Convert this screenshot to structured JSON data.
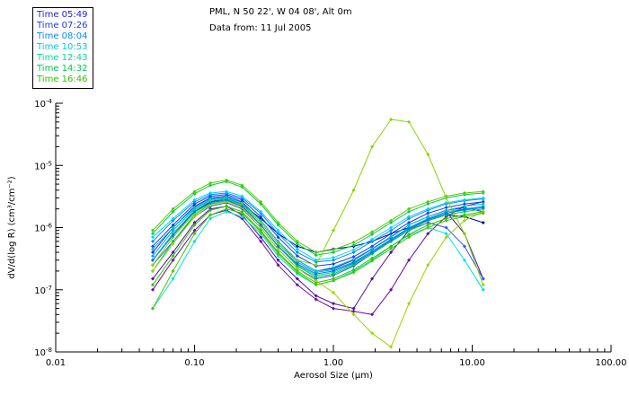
{
  "header": {
    "line1": "PML, N 50 22', W 04 08', Alt 0m",
    "line2": "Data from: 11 Jul 2005"
  },
  "legend": {
    "items": [
      {
        "label": "Time 05:49",
        "color": "#2222dd"
      },
      {
        "label": "Time 07:26",
        "color": "#1a3cf0"
      },
      {
        "label": "Time 08:04",
        "color": "#008cff"
      },
      {
        "label": "Time 10:53",
        "color": "#00c8e0"
      },
      {
        "label": "Time 12:43",
        "color": "#00dc9b"
      },
      {
        "label": "Time 14:32",
        "color": "#00c850"
      },
      {
        "label": "Time 16:46",
        "color": "#2fc400"
      }
    ]
  },
  "chart_data": {
    "type": "line",
    "title": "",
    "xlabel": "Aerosol Size (μm)",
    "ylabel": "dV/d(log R) (cm³/cm⁻²)",
    "x_scale": "log",
    "y_scale": "log",
    "xlim": [
      0.01,
      100
    ],
    "ylim": [
      1e-08,
      0.0001
    ],
    "grid": false,
    "legend_position": "top-left",
    "x_ticks": [
      {
        "value": 0.01,
        "label": "0.01"
      },
      {
        "value": 0.1,
        "label": "0.10"
      },
      {
        "value": 1,
        "label": "1.00"
      },
      {
        "value": 10,
        "label": "10.00"
      },
      {
        "value": 100,
        "label": "100.00"
      }
    ],
    "y_tick_exponents": [
      -8,
      -7,
      -6,
      -5,
      -4
    ],
    "x": [
      0.05,
      0.07,
      0.1,
      0.13,
      0.17,
      0.22,
      0.3,
      0.4,
      0.55,
      0.75,
      1.0,
      1.4,
      1.9,
      2.6,
      3.5,
      4.8,
      6.5,
      8.8,
      12.0
    ],
    "series": [
      {
        "name": "05:49 a",
        "color": "#000099",
        "values": [
          3e-07,
          8e-07,
          1.8e-06,
          2.6e-06,
          2.9e-06,
          2.4e-06,
          1.4e-06,
          8e-07,
          5e-07,
          4e-07,
          4.5e-07,
          5e-07,
          6e-07,
          8e-07,
          1e-06,
          1.3e-06,
          1.6e-06,
          1.5e-06,
          1.2e-06
        ]
      },
      {
        "name": "05:49 b",
        "color": "#4b0fa8",
        "values": [
          1.5e-07,
          4e-07,
          1.2e-06,
          2e-06,
          2.2e-06,
          1.6e-06,
          7e-07,
          3e-07,
          1.5e-07,
          8e-08,
          6e-08,
          5e-08,
          1.5e-07,
          4e-07,
          9e-07,
          1.4e-06,
          1.8e-06,
          8e-07,
          1.5e-07
        ]
      },
      {
        "name": "05:49 c",
        "color": "#6a0dad",
        "values": [
          1e-07,
          3e-07,
          9e-07,
          1.6e-06,
          1.9e-06,
          1.4e-06,
          6e-07,
          2.5e-07,
          1.2e-07,
          7e-08,
          5e-08,
          4.5e-08,
          4e-08,
          1e-07,
          3e-07,
          8e-07,
          1.5e-06,
          2.2e-06,
          2.6e-06
        ]
      },
      {
        "name": "05:49 d",
        "color": "#2222dd",
        "values": [
          4e-07,
          1e-06,
          2.2e-06,
          3e-06,
          3.2e-06,
          2.6e-06,
          1.3e-06,
          6e-07,
          3e-07,
          2e-07,
          2.2e-07,
          3e-07,
          4.5e-07,
          7e-07,
          1.1e-06,
          1.5e-06,
          1.9e-06,
          2.1e-06,
          1.8e-06
        ]
      },
      {
        "name": "07:26 a",
        "color": "#1a3cf0",
        "values": [
          5e-07,
          1.1e-06,
          2.4e-06,
          3.2e-06,
          3.4e-06,
          2.8e-06,
          1.5e-06,
          7e-07,
          3.5e-07,
          2.4e-07,
          2.6e-07,
          3.4e-07,
          5e-07,
          8e-07,
          1.2e-06,
          1.7e-06,
          2.1e-06,
          2.4e-06,
          2.6e-06
        ]
      },
      {
        "name": "07:26 b",
        "color": "#3355ff",
        "values": [
          2.5e-07,
          6e-07,
          1.5e-06,
          2.2e-06,
          2.5e-06,
          2e-06,
          1e-06,
          4.5e-07,
          2.2e-07,
          1.5e-07,
          1.7e-07,
          2.4e-07,
          3.8e-07,
          6e-07,
          9e-07,
          1.2e-06,
          1e-06,
          5e-07,
          1.5e-07
        ]
      },
      {
        "name": "08:04 a",
        "color": "#008cff",
        "values": [
          6e-07,
          1.3e-06,
          2.6e-06,
          3.4e-06,
          3.6e-06,
          3e-06,
          1.7e-06,
          8e-07,
          4e-07,
          2.8e-07,
          3e-07,
          4e-07,
          6e-07,
          9e-07,
          1.4e-06,
          1.9e-06,
          2.4e-06,
          2.7e-06,
          2.9e-06
        ]
      },
      {
        "name": "08:04 b",
        "color": "#00a0ff",
        "values": [
          3.5e-07,
          9e-07,
          2e-06,
          2.8e-06,
          3e-06,
          2.4e-06,
          1.2e-06,
          5.5e-07,
          2.8e-07,
          1.9e-07,
          2.1e-07,
          2.8e-07,
          4.2e-07,
          6.5e-07,
          1e-06,
          1.4e-06,
          1.8e-06,
          2e-06,
          2.2e-06
        ]
      },
      {
        "name": "10:53 a",
        "color": "#00d4ff",
        "values": [
          7e-07,
          1.4e-06,
          2.8e-06,
          3.6e-06,
          3.8e-06,
          3.2e-06,
          1.8e-06,
          9e-07,
          4.5e-07,
          3e-07,
          3.3e-07,
          4.4e-07,
          6.5e-07,
          1e-06,
          1.5e-06,
          2e-06,
          2.5e-06,
          2.8e-06,
          3e-06
        ]
      },
      {
        "name": "10:53 b",
        "color": "#00e0e0",
        "values": [
          5e-08,
          1.5e-07,
          6e-07,
          1.4e-06,
          1.8e-06,
          1.5e-06,
          8e-07,
          3.5e-07,
          1.8e-07,
          1.2e-07,
          1.4e-07,
          2e-07,
          3e-07,
          5e-07,
          7.5e-07,
          1e-06,
          8e-07,
          3e-07,
          1e-07
        ]
      },
      {
        "name": "10:53 c",
        "color": "#00c8b0",
        "values": [
          4.5e-07,
          1e-06,
          2.1e-06,
          2.9e-06,
          3.1e-06,
          2.5e-06,
          1.3e-06,
          6e-07,
          3e-07,
          2e-07,
          2.3e-07,
          3.1e-07,
          4.6e-07,
          7.2e-07,
          1.1e-06,
          1.5e-06,
          1.9e-06,
          2.2e-06,
          2.4e-06
        ]
      },
      {
        "name": "12:43 a",
        "color": "#00dc9b",
        "values": [
          3e-07,
          8e-07,
          1.9e-06,
          2.7e-06,
          2.9e-06,
          2.3e-06,
          1.1e-06,
          5e-07,
          2.5e-07,
          1.7e-07,
          1.9e-07,
          2.6e-07,
          4e-07,
          6.2e-07,
          9.5e-07,
          1.3e-06,
          1.7e-06,
          1.9e-06,
          2.1e-06
        ]
      },
      {
        "name": "14:32 a",
        "color": "#00c850",
        "values": [
          2e-07,
          6e-07,
          1.6e-06,
          2.4e-06,
          2.7e-06,
          2.2e-06,
          1.1e-06,
          5e-07,
          2.4e-07,
          1.6e-07,
          1.8e-07,
          2.5e-07,
          3.8e-07,
          6e-07,
          9e-07,
          1.3e-06,
          1.6e-06,
          1.8e-06,
          2e-06
        ]
      },
      {
        "name": "14:32 b",
        "color": "#00d040",
        "values": [
          8e-07,
          1.8e-06,
          3.5e-06,
          4.8e-06,
          5.5e-06,
          4.5e-06,
          2.4e-06,
          1.1e-06,
          5.5e-07,
          3.6e-07,
          4e-07,
          5.2e-07,
          7.8e-07,
          1.2e-06,
          1.8e-06,
          2.4e-06,
          3e-06,
          3.4e-06,
          3.6e-06
        ]
      },
      {
        "name": "16:46 a",
        "color": "#2fc400",
        "values": [
          1.2e-07,
          3.5e-07,
          1.1e-06,
          1.9e-06,
          2.2e-06,
          1.8e-06,
          9e-07,
          4e-07,
          2e-07,
          1.3e-07,
          1.5e-07,
          2.1e-07,
          3.2e-07,
          5e-07,
          7.8e-07,
          1.1e-06,
          1.4e-06,
          1.6e-06,
          1.8e-06
        ]
      },
      {
        "name": "16:46 b",
        "color": "#58c800",
        "values": [
          9e-07,
          2e-06,
          3.8e-06,
          5.2e-06,
          5.8e-06,
          4.8e-06,
          2.6e-06,
          1.2e-06,
          6e-07,
          4e-07,
          4.4e-07,
          5.8e-07,
          8.5e-07,
          1.3e-06,
          2e-06,
          2.6e-06,
          3.2e-06,
          3.6e-06,
          3.8e-06
        ]
      },
      {
        "name": "16:46 c",
        "color": "#86d400",
        "values": [
          2.5e-07,
          7e-07,
          1.7e-06,
          2.5e-06,
          2.8e-06,
          2.3e-06,
          1.2e-06,
          5.5e-07,
          3e-07,
          2.5e-07,
          9e-07,
          4e-06,
          2e-05,
          5.5e-05,
          5e-05,
          1.5e-05,
          3e-06,
          8e-07,
          1.2e-07
        ]
      },
      {
        "name": "16:46 d",
        "color": "#9ad400",
        "values": [
          2e-07,
          5.5e-07,
          1.5e-06,
          2.3e-06,
          2.6e-06,
          2.1e-06,
          1e-06,
          4.5e-07,
          2.2e-07,
          1.4e-07,
          9e-08,
          4e-08,
          2e-08,
          1.2e-08,
          6e-08,
          2.5e-07,
          7e-07,
          1.3e-06,
          1.8e-06
        ]
      },
      {
        "name": "16:46 e",
        "color": "#45c800",
        "values": [
          5e-08,
          2e-07,
          8e-07,
          1.6e-06,
          2e-06,
          1.7e-06,
          8.5e-07,
          3.8e-07,
          1.9e-07,
          1.2e-07,
          1.4e-07,
          1.9e-07,
          2.9e-07,
          4.6e-07,
          7e-07,
          1e-06,
          1.3e-06,
          1.5e-06,
          1.7e-06
        ]
      },
      {
        "name": "08:04 c",
        "color": "#0077ee",
        "values": [
          3e-07,
          7.5e-07,
          1.8e-06,
          2.5e-06,
          2.8e-06,
          2.2e-06,
          1.1e-06,
          5e-07,
          2.6e-07,
          1.8e-07,
          2e-07,
          2.7e-07,
          4e-07,
          6.3e-07,
          9.6e-07,
          1.35e-06,
          1.7e-06,
          1.95e-06,
          2.1e-06
        ]
      }
    ]
  }
}
